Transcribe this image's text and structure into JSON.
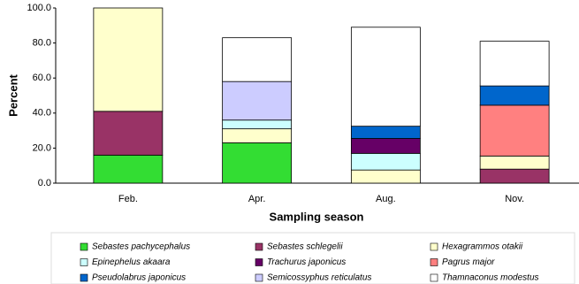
{
  "chart_data": {
    "type": "stacked_bar",
    "xlabel": "Sampling season",
    "ylabel": "Percent",
    "categories": [
      "Feb.",
      "Apr.",
      "Aug.",
      "Nov."
    ],
    "ylim": [
      0,
      100
    ],
    "yticks": [
      {
        "value": 0,
        "label": "0.0"
      },
      {
        "value": 20,
        "label": "20.0"
      },
      {
        "value": 40,
        "label": "40.0"
      },
      {
        "value": 60,
        "label": "60.0"
      },
      {
        "value": 80,
        "label": "80.0"
      },
      {
        "value": 100,
        "label": "100.0"
      }
    ],
    "series": [
      {
        "name": "Sebastes pachycephalus",
        "color": "#33dd33",
        "values": [
          16,
          23,
          0,
          0
        ]
      },
      {
        "name": "Sebastes schlegelii",
        "color": "#993366",
        "values": [
          25,
          0,
          0,
          8
        ]
      },
      {
        "name": "Hexagrammos otakii",
        "color": "#ffffcc",
        "values": [
          59,
          8,
          7.5,
          7.5
        ]
      },
      {
        "name": "Epinephelus akaara",
        "color": "#ccffff",
        "values": [
          0,
          5,
          9.5,
          0
        ]
      },
      {
        "name": "Trachurus japonicus",
        "color": "#660066",
        "values": [
          0,
          0,
          8.5,
          0
        ]
      },
      {
        "name": "Pagrus major",
        "color": "#ff8080",
        "values": [
          0,
          0,
          0,
          29
        ]
      },
      {
        "name": "Pseudolabrus japonicus",
        "color": "#0066cc",
        "values": [
          0,
          0,
          7,
          11
        ]
      },
      {
        "name": "Semicossyphus reticulatus",
        "color": "#ccccff",
        "values": [
          0,
          22,
          0,
          0
        ]
      },
      {
        "name": "Thamnaconus modestus",
        "color": "#ffffff",
        "values": [
          0,
          25,
          56.5,
          25.5
        ]
      }
    ]
  }
}
